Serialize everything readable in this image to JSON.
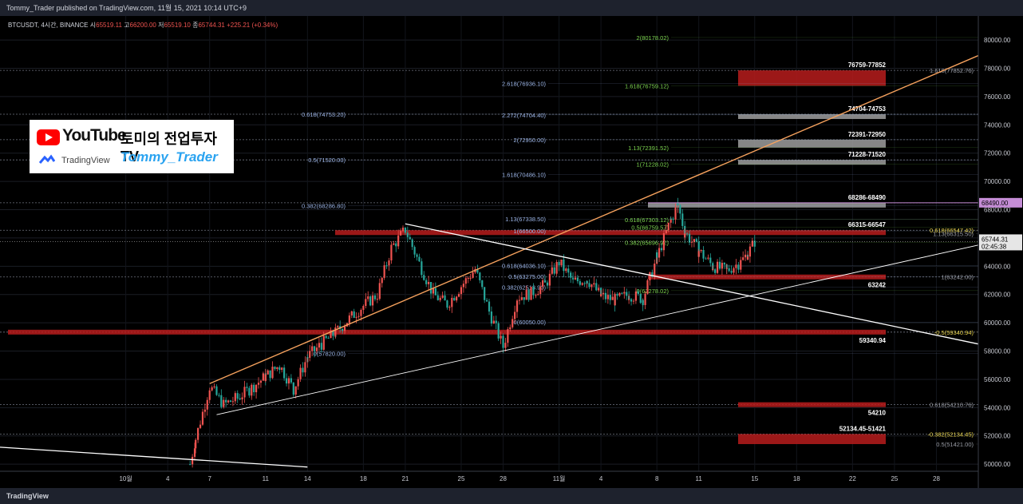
{
  "header": {
    "publish_text": "Tommy_Trader published on TradingView.com, 11월 15, 2021 10:14 UTC+9"
  },
  "symbol": {
    "name": "BTCUSDT, 4시간, BINANCE",
    "open_label": "시",
    "open": "65519.11",
    "high_label": "고",
    "high": "66200.00",
    "low_label": "저",
    "low": "65519.10",
    "close_label": "종",
    "close": "65744.31",
    "change": "+225.21 (+0.34%)"
  },
  "logo_card": {
    "youtube_text": "YouTube",
    "tradingview_text": "TradingView",
    "channel_name": "토미의 전업투자TV",
    "handle": "Tommy_Trader"
  },
  "footer": {
    "brand": "TradingView"
  },
  "colors": {
    "background": "#000000",
    "candle_up": "#ef5350",
    "candle_down": "#26a69a",
    "zone": "#b71c1c",
    "zone_gray": "#9e9e9e",
    "trendline": "#ffffff",
    "channel": "#f5a15d",
    "fib_green": "#7cd44f",
    "fib_blue": "#9bb4e6",
    "fib_yellow": "#e8d44d",
    "last_price": "#dddddd",
    "pink_price": "#c58dd6"
  },
  "chart_data": {
    "type": "candlestick",
    "ylim": [
      49500,
      81700
    ],
    "y_ticks": [
      "80000.00",
      "78000.00",
      "76000.00",
      "74000.00",
      "72000.00",
      "70000.00",
      "68000.00",
      "66000.00",
      "64000.00",
      "62000.00",
      "60000.00",
      "58000.00",
      "56000.00",
      "54000.00",
      "52000.00",
      "50000.00"
    ],
    "x_ticks": [
      "10월",
      "4",
      "7",
      "11",
      "14",
      "18",
      "21",
      "25",
      "28",
      "11월",
      "4",
      "8",
      "11",
      "15",
      "18",
      "22",
      "25",
      "28"
    ],
    "x_tick_days": [
      1,
      4,
      7,
      11,
      14,
      18,
      21,
      25,
      28,
      32,
      35,
      39,
      42,
      46,
      49,
      53,
      56,
      59
    ],
    "x_day_range": [
      -8,
      62
    ],
    "last_price": {
      "price": 65744.31,
      "label": "65744.31",
      "countdown": "02:45:38"
    },
    "pink_level": {
      "price": 68490,
      "label": "68490.00"
    },
    "ohlc_path": [
      [
        5.6,
        50000
      ],
      [
        6,
        51800
      ],
      [
        7,
        55500
      ],
      [
        8,
        54200
      ],
      [
        9,
        54700
      ],
      [
        10,
        55400
      ],
      [
        11,
        56200
      ],
      [
        12,
        57000
      ],
      [
        13,
        55300
      ],
      [
        14,
        57600
      ],
      [
        15,
        58500
      ],
      [
        16,
        59300
      ],
      [
        17,
        60300
      ],
      [
        18,
        61200
      ],
      [
        19,
        62000
      ],
      [
        20,
        65300
      ],
      [
        21,
        66600
      ],
      [
        22,
        64200
      ],
      [
        23,
        62000
      ],
      [
        24,
        61300
      ],
      [
        25,
        62600
      ],
      [
        26,
        63800
      ],
      [
        27,
        60800
      ],
      [
        28,
        58300
      ],
      [
        29,
        61800
      ],
      [
        30,
        62100
      ],
      [
        31,
        62700
      ],
      [
        32,
        64300
      ],
      [
        33,
        62900
      ],
      [
        34,
        63100
      ],
      [
        35,
        61900
      ],
      [
        36,
        61600
      ],
      [
        37,
        62000
      ],
      [
        38,
        61700
      ],
      [
        39,
        64600
      ],
      [
        40,
        67300
      ],
      [
        40.5,
        68300
      ],
      [
        41,
        66400
      ],
      [
        42,
        65100
      ],
      [
        43,
        64000
      ],
      [
        44,
        63700
      ],
      [
        45,
        64300
      ],
      [
        45.5,
        64900
      ],
      [
        46,
        65744
      ]
    ],
    "zones": [
      {
        "label": "76759-77852",
        "low": 76759,
        "high": 77852,
        "color": "red"
      },
      {
        "label": "74704-74753",
        "low": 74704,
        "high": 74753,
        "color": "gray"
      },
      {
        "label": "72391-72950",
        "low": 72391,
        "high": 72950,
        "color": "gray"
      },
      {
        "label": "71228-71520",
        "low": 71228,
        "high": 71520,
        "color": "gray"
      },
      {
        "label": "68286-68490",
        "low": 68286,
        "high": 68490,
        "color": "gray"
      },
      {
        "label": "66315-66547",
        "low": 66315,
        "high": 66547,
        "color": "red"
      },
      {
        "label": "63242",
        "low": 63242,
        "high": 63242,
        "color": "red"
      },
      {
        "label": "59340.94",
        "low": 59340,
        "high": 59340,
        "color": "red"
      },
      {
        "label": "54210",
        "low": 54210,
        "high": 54210,
        "color": "red"
      },
      {
        "label": "52134.45-51421",
        "low": 51421,
        "high": 52134,
        "color": "red"
      }
    ],
    "fib_labels": [
      {
        "text": "2(80178.02)",
        "price": 80178.02,
        "color": "green"
      },
      {
        "text": "2.618(76936.10)",
        "price": 76936.1,
        "color": "blue"
      },
      {
        "text": "1.618(76759.12)",
        "price": 76759.12,
        "color": "green"
      },
      {
        "text": "1.618(77852.76)",
        "price": 77852.76,
        "color": "gray"
      },
      {
        "text": "0.618(74753.20)",
        "price": 74753.2,
        "color": "blue"
      },
      {
        "text": "2.272(74704.40)",
        "price": 74704.4,
        "color": "blue"
      },
      {
        "text": "2(72950.00)",
        "price": 72950.0,
        "color": "blue"
      },
      {
        "text": "1.13(72391.52)",
        "price": 72391.52,
        "color": "green"
      },
      {
        "text": "0.5(71520.00)",
        "price": 71520.0,
        "color": "blue"
      },
      {
        "text": "1(71228.02)",
        "price": 71228.02,
        "color": "green"
      },
      {
        "text": "1.618(70486.10)",
        "price": 70486.1,
        "color": "blue"
      },
      {
        "text": "0.382(68286.80)",
        "price": 68286.8,
        "color": "blue"
      },
      {
        "text": "0.618(67303.12)",
        "price": 67303.12,
        "color": "green"
      },
      {
        "text": "1.13(67338.50)",
        "price": 67338.5,
        "color": "blue"
      },
      {
        "text": "0.5(66759.57)",
        "price": 66759.57,
        "color": "green"
      },
      {
        "text": "1(66500.00)",
        "price": 66500.0,
        "color": "blue"
      },
      {
        "text": "0.618(66547.42)",
        "price": 66547.42,
        "color": "yellow"
      },
      {
        "text": "1.13(66315.50)",
        "price": 66315.5,
        "color": "gray"
      },
      {
        "text": "0.382(65696.92)",
        "price": 65696.92,
        "color": "green"
      },
      {
        "text": "0.618(64036.10)",
        "price": 64036.1,
        "color": "blue"
      },
      {
        "text": "0.5(63275.00)",
        "price": 63275.0,
        "color": "blue"
      },
      {
        "text": "1(63242.00)",
        "price": 63242.0,
        "color": "gray"
      },
      {
        "text": "0.382(62513.90)",
        "price": 62513.9,
        "color": "blue"
      },
      {
        "text": "0(62278.02)",
        "price": 62278.02,
        "color": "green"
      },
      {
        "text": "0(60050.00)",
        "price": 60050.0,
        "color": "blue"
      },
      {
        "text": "-0.5(59340.94)",
        "price": 59340.94,
        "color": "yellow"
      },
      {
        "text": "0(57820.00)",
        "price": 57820.0,
        "color": "blue"
      },
      {
        "text": "0.618(54210.76)",
        "price": 54210.76,
        "color": "gray"
      },
      {
        "text": "-0.382(52134.45)",
        "price": 52134.45,
        "color": "yellow"
      },
      {
        "text": "0.5(51421.00)",
        "price": 51421.0,
        "color": "gray"
      }
    ]
  }
}
